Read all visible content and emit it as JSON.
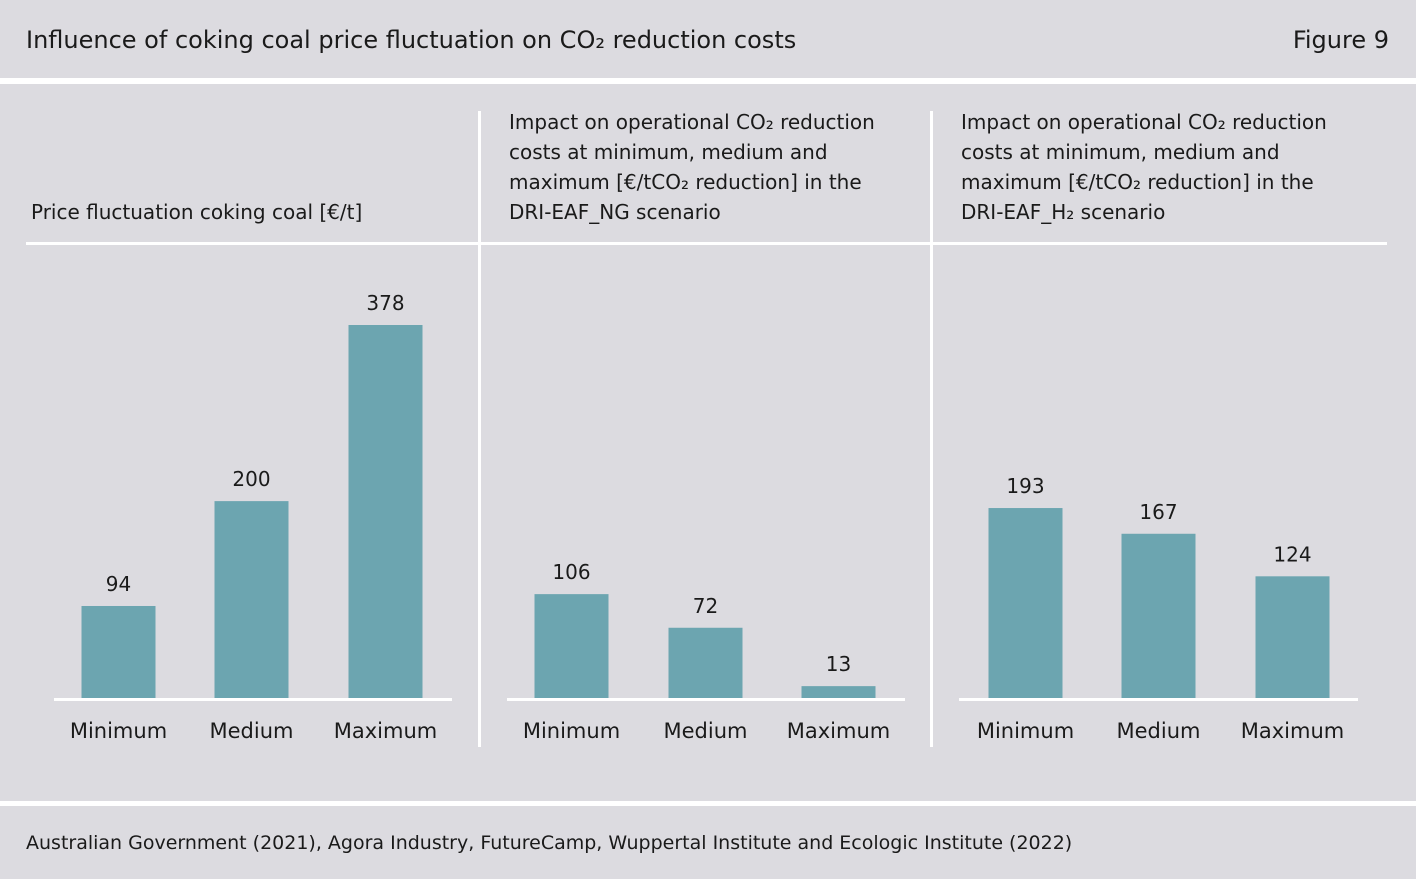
{
  "header": {
    "title": "Influence of coking coal price fluctuation on CO₂ reduction costs",
    "figure_label": "Figure 9"
  },
  "source": "Australian Government (2021), Agora Industry, FutureCamp, Wuppertal Institute and Ecologic Institute (2022)",
  "colors": {
    "bar": "#6ca5b0",
    "background": "#dcdbe0",
    "rule": "#ffffff"
  },
  "chart_data": [
    {
      "type": "bar",
      "title": "Price fluctuation coking coal [€/t]",
      "categories": [
        "Minimum",
        "Medium",
        "Maximum"
      ],
      "values": [
        94,
        200,
        378
      ],
      "ylim": [
        0,
        378
      ]
    },
    {
      "type": "bar",
      "title": "Impact on operational CO₂ reduction costs at minimum, medium and maximum [€/tCO₂ reduction] in the DRI-EAF_NG scenario",
      "categories": [
        "Minimum",
        "Medium",
        "Maximum"
      ],
      "values": [
        106,
        72,
        13
      ],
      "ylim": [
        0,
        378
      ]
    },
    {
      "type": "bar",
      "title": "Impact on operational CO₂ reduction costs at minimum, medium and maximum [€/tCO₂ reduction] in the DRI-EAF_H₂ scenario",
      "categories": [
        "Minimum",
        "Medium",
        "Maximum"
      ],
      "values": [
        193,
        167,
        124
      ],
      "ylim": [
        0,
        378
      ]
    }
  ]
}
